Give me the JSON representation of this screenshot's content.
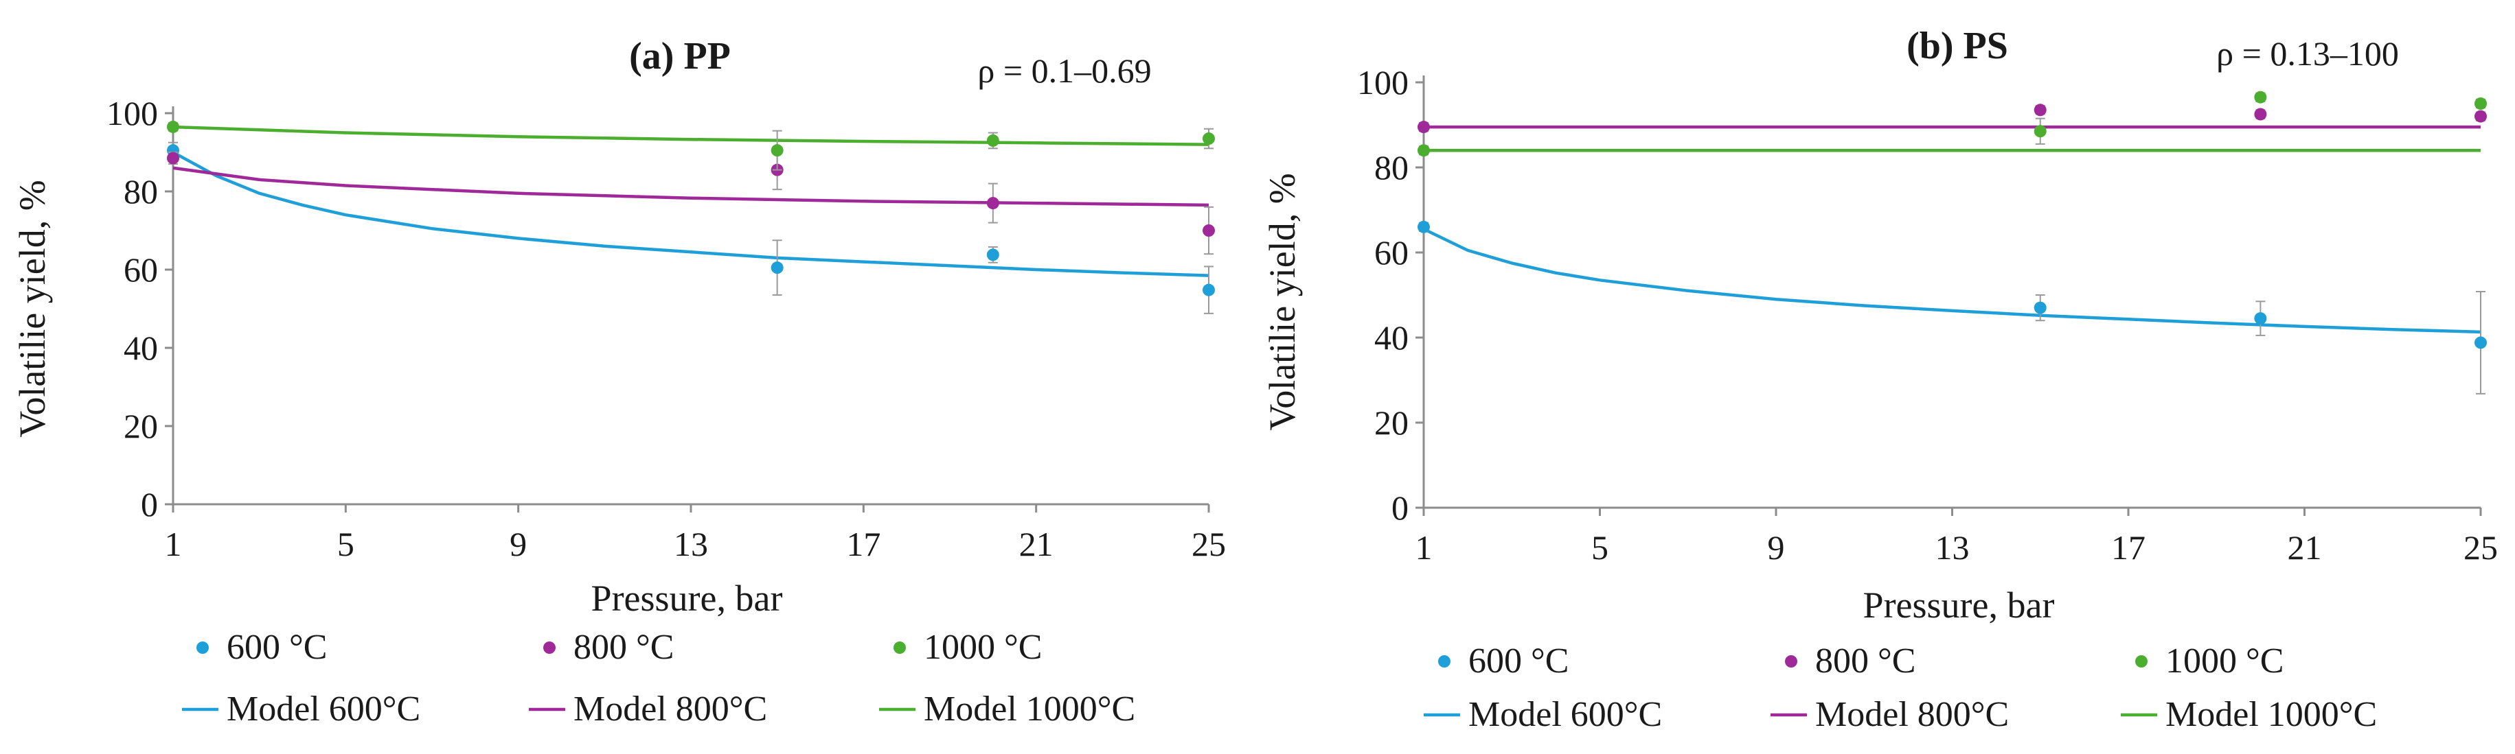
{
  "figure": "Volatile yield vs pressure for PP and PS",
  "chart_data": [
    {
      "type": "scatter",
      "title": "(a) PP",
      "annotation": "ρ = 0.1–0.69",
      "xlabel": "Pressure, bar",
      "ylabel": "Volatilie yield, %",
      "xlim": [
        1,
        25
      ],
      "ylim": [
        0,
        100
      ],
      "xticks": [
        1,
        5,
        9,
        13,
        17,
        21,
        25
      ],
      "yticks": [
        0,
        20,
        40,
        60,
        80,
        100
      ],
      "series": [
        {
          "name": "600 °C",
          "kind": "points",
          "color": "#1f9fd8",
          "x": [
            1,
            15,
            20,
            25
          ],
          "y": [
            90.5,
            60.5,
            63.8,
            54.8
          ],
          "err": [
            2,
            7,
            2,
            6
          ]
        },
        {
          "name": "800 °C",
          "kind": "points",
          "color": "#a0299a",
          "x": [
            1,
            15,
            20,
            25
          ],
          "y": [
            88.5,
            85.5,
            77,
            70
          ],
          "err": [
            1.5,
            5,
            5,
            6
          ]
        },
        {
          "name": "1000 °C",
          "kind": "points",
          "color": "#4cae2e",
          "x": [
            1,
            15,
            20,
            25
          ],
          "y": [
            96.5,
            90.5,
            93,
            93.5
          ],
          "err": [
            1,
            5,
            2,
            2.5
          ]
        },
        {
          "name": "Model 600°C",
          "kind": "line",
          "color": "#1f9fd8",
          "x": [
            1,
            2,
            3,
            4,
            5,
            7,
            9,
            11,
            13,
            15,
            17,
            19,
            21,
            23,
            25
          ],
          "y": [
            90,
            84,
            79.5,
            76.5,
            74,
            70.5,
            68,
            66,
            64.5,
            63,
            62,
            61,
            60,
            59.2,
            58.5
          ]
        },
        {
          "name": "Model 800°C",
          "kind": "line",
          "color": "#a0299a",
          "x": [
            1,
            3,
            5,
            9,
            13,
            17,
            21,
            25
          ],
          "y": [
            86,
            83,
            81.5,
            79.5,
            78.3,
            77.5,
            77,
            76.5
          ]
        },
        {
          "name": "Model 1000°C",
          "kind": "line",
          "color": "#4cae2e",
          "x": [
            1,
            5,
            9,
            13,
            17,
            21,
            25
          ],
          "y": [
            96.5,
            95,
            94,
            93.3,
            92.8,
            92.4,
            92
          ]
        }
      ]
    },
    {
      "type": "scatter",
      "title": "(b) PS",
      "annotation": "ρ = 0.13–100",
      "xlabel": "Pressure, bar",
      "ylabel": "Volatilie yield, %",
      "xlim": [
        1,
        25
      ],
      "ylim": [
        0,
        100
      ],
      "xticks": [
        1,
        5,
        9,
        13,
        17,
        21,
        25
      ],
      "yticks": [
        0,
        20,
        40,
        60,
        80,
        100
      ],
      "series": [
        {
          "name": "600 °C",
          "kind": "points",
          "color": "#1f9fd8",
          "x": [
            1,
            15,
            20,
            25
          ],
          "y": [
            66,
            47,
            44.5,
            38.8
          ],
          "err": [
            1,
            3,
            4,
            12
          ]
        },
        {
          "name": "800 °C",
          "kind": "points",
          "color": "#a0299a",
          "x": [
            1,
            15,
            20,
            25
          ],
          "y": [
            89.5,
            93.5,
            92.5,
            92
          ],
          "err": [
            1,
            1,
            1,
            1
          ]
        },
        {
          "name": "1000 °C",
          "kind": "points",
          "color": "#4cae2e",
          "x": [
            1,
            15,
            20,
            25
          ],
          "y": [
            84,
            88.5,
            96.5,
            95
          ],
          "err": [
            1,
            3,
            1,
            1
          ]
        },
        {
          "name": "Model 600°C",
          "kind": "line",
          "color": "#1f9fd8",
          "x": [
            1,
            2,
            3,
            4,
            5,
            7,
            9,
            11,
            13,
            15,
            17,
            19,
            21,
            23,
            25
          ],
          "y": [
            65.5,
            60.5,
            57.5,
            55.2,
            53.5,
            51,
            49,
            47.5,
            46.3,
            45.2,
            44.3,
            43.4,
            42.6,
            41.9,
            41.3
          ]
        },
        {
          "name": "Model 800°C",
          "kind": "line",
          "color": "#a0299a",
          "x": [
            1,
            25
          ],
          "y": [
            89.5,
            89.5
          ]
        },
        {
          "name": "Model 1000°C",
          "kind": "line",
          "color": "#4cae2e",
          "x": [
            1,
            25
          ],
          "y": [
            84,
            84
          ]
        }
      ]
    }
  ]
}
